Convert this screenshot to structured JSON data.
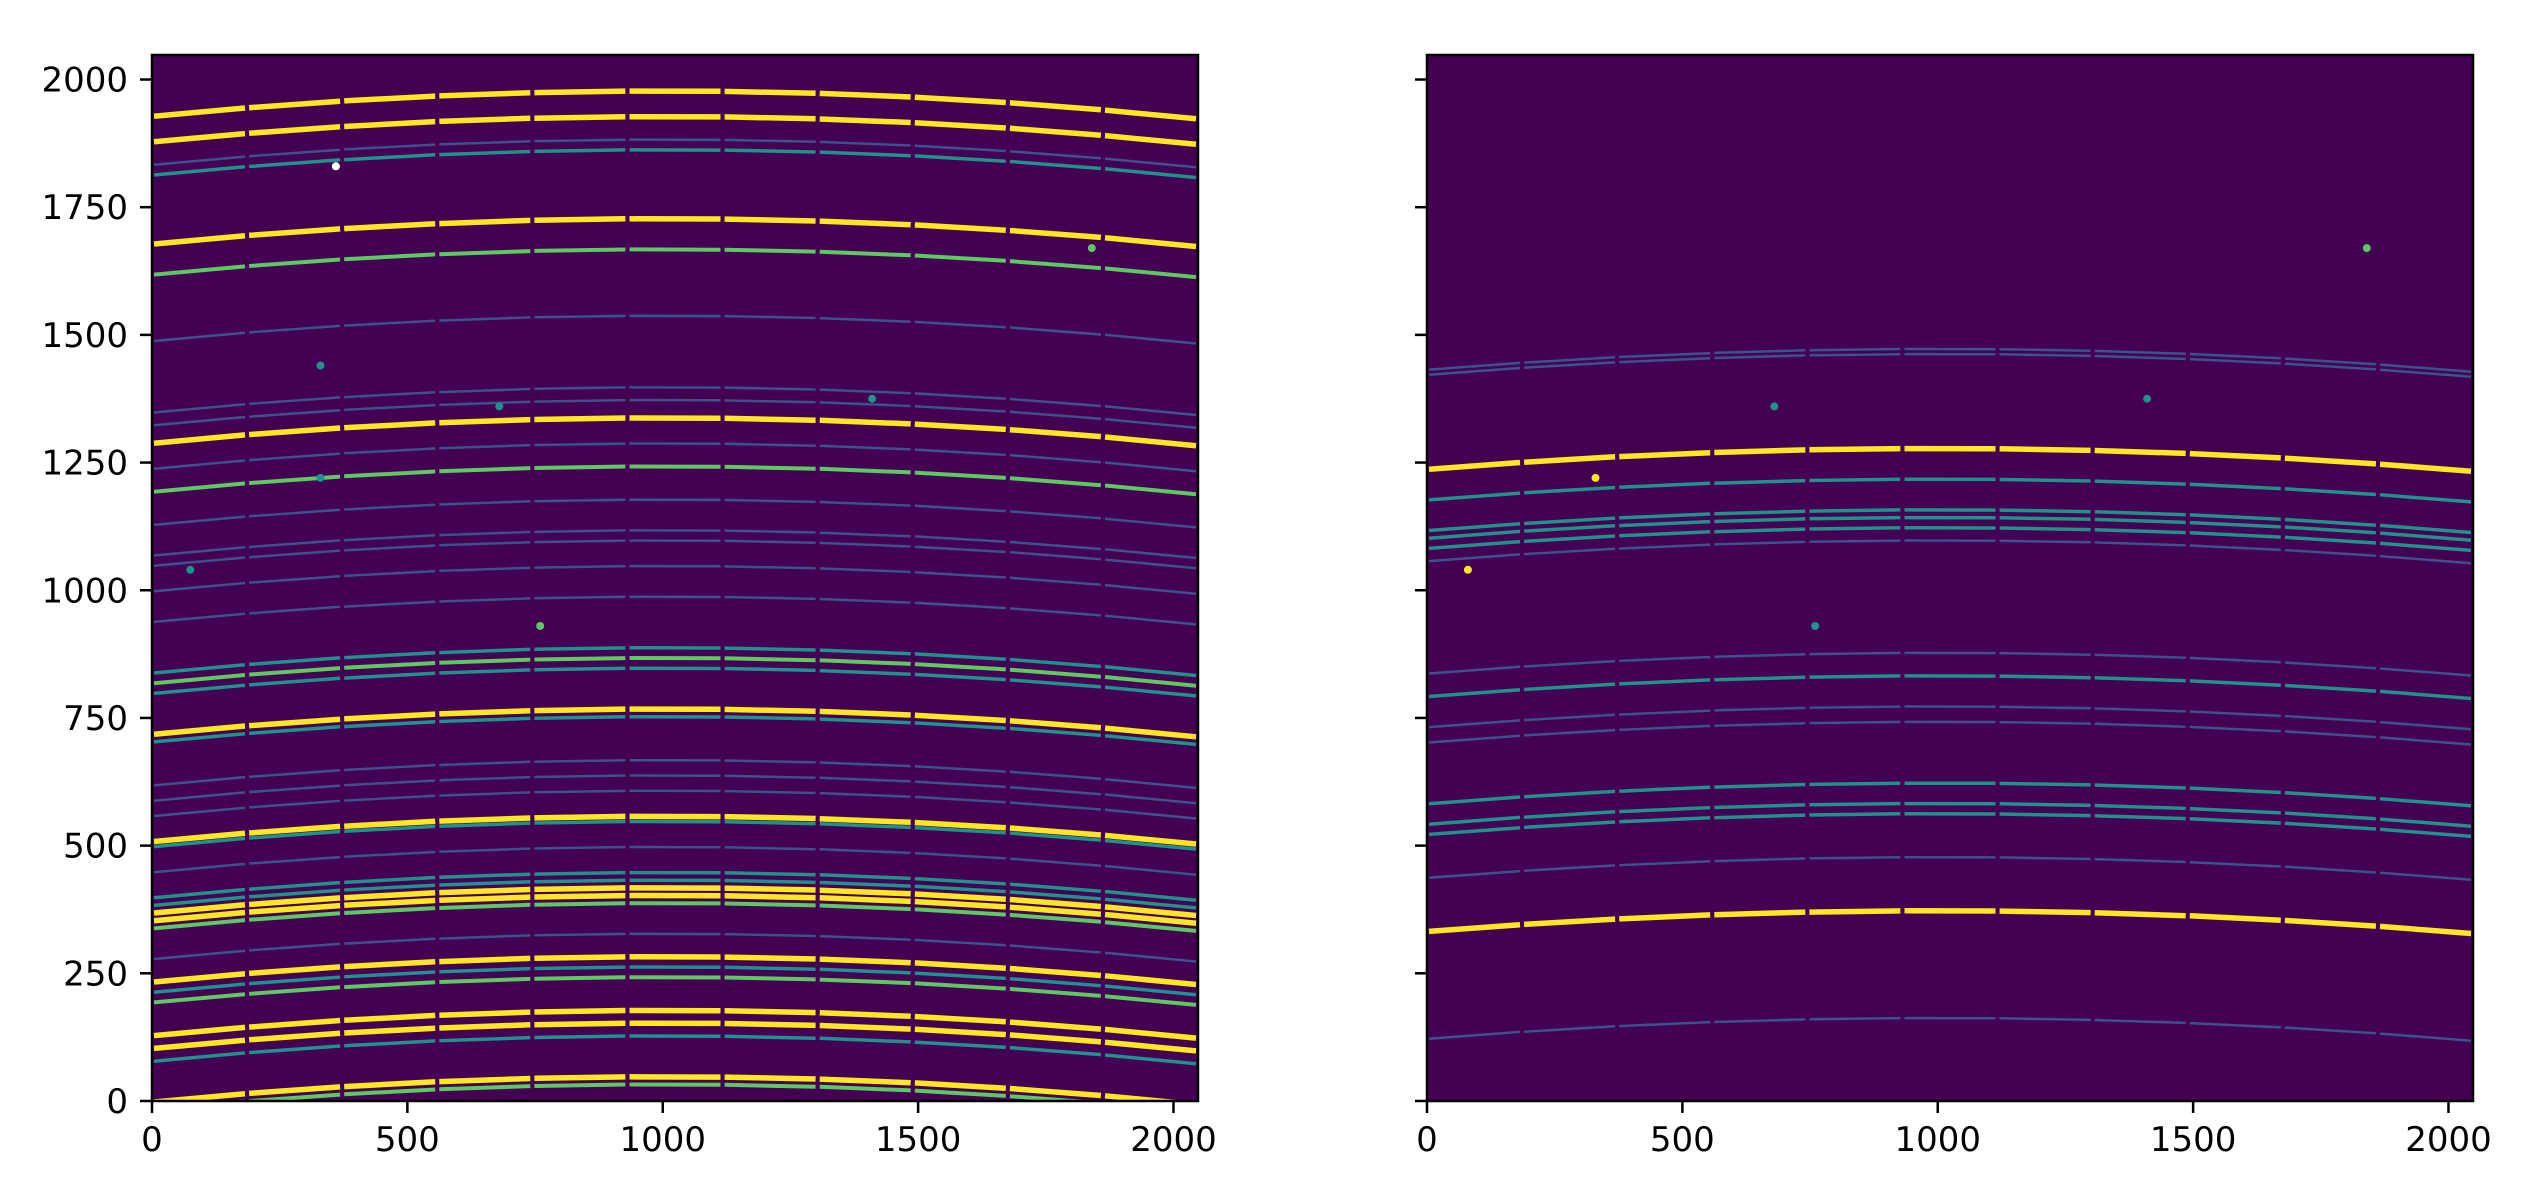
{
  "figure": {
    "background": "#ffffff"
  },
  "colors": {
    "background_level": "#440154",
    "low_level": "#3b528b",
    "mid_level": "#21918c",
    "high_level": "#5ec962",
    "peak_level": "#fde725"
  },
  "chart_data": [
    {
      "type": "heatmap",
      "colormap": "viridis",
      "xlim": [
        0,
        2048
      ],
      "ylim": [
        0,
        2048
      ],
      "xticks": [
        "0",
        "500",
        "1000",
        "1500",
        "2000"
      ],
      "yticks": [
        "0",
        "250",
        "500",
        "750",
        "1000",
        "1250",
        "1500",
        "1750",
        "2000"
      ],
      "x_tick_values": [
        0,
        500,
        1000,
        1500,
        2000
      ],
      "y_tick_values": [
        0,
        250,
        500,
        750,
        1000,
        1250,
        1500,
        1750,
        2000
      ],
      "show_ytick_labels": true,
      "curvature": 55,
      "segment_count": 11,
      "lines": [
        {
          "y": 1950,
          "level": "peak"
        },
        {
          "y": 1900,
          "level": "peak"
        },
        {
          "y": 1855,
          "level": "low"
        },
        {
          "y": 1835,
          "level": "mid"
        },
        {
          "y": 1700,
          "level": "peak"
        },
        {
          "y": 1640,
          "level": "high"
        },
        {
          "y": 1510,
          "level": "low"
        },
        {
          "y": 1370,
          "level": "low"
        },
        {
          "y": 1345,
          "level": "low"
        },
        {
          "y": 1310,
          "level": "peak"
        },
        {
          "y": 1260,
          "level": "low"
        },
        {
          "y": 1215,
          "level": "high"
        },
        {
          "y": 1150,
          "level": "low"
        },
        {
          "y": 1090,
          "level": "low"
        },
        {
          "y": 1070,
          "level": "low"
        },
        {
          "y": 1020,
          "level": "low"
        },
        {
          "y": 960,
          "level": "low"
        },
        {
          "y": 860,
          "level": "mid"
        },
        {
          "y": 840,
          "level": "high"
        },
        {
          "y": 820,
          "level": "mid"
        },
        {
          "y": 740,
          "level": "peak"
        },
        {
          "y": 725,
          "level": "mid"
        },
        {
          "y": 640,
          "level": "low"
        },
        {
          "y": 610,
          "level": "low"
        },
        {
          "y": 580,
          "level": "low"
        },
        {
          "y": 530,
          "level": "peak"
        },
        {
          "y": 520,
          "level": "mid"
        },
        {
          "y": 470,
          "level": "low"
        },
        {
          "y": 420,
          "level": "mid"
        },
        {
          "y": 405,
          "level": "mid"
        },
        {
          "y": 390,
          "level": "peak"
        },
        {
          "y": 375,
          "level": "peak"
        },
        {
          "y": 360,
          "level": "high"
        },
        {
          "y": 300,
          "level": "low"
        },
        {
          "y": 255,
          "level": "peak"
        },
        {
          "y": 235,
          "level": "mid"
        },
        {
          "y": 215,
          "level": "high"
        },
        {
          "y": 150,
          "level": "peak"
        },
        {
          "y": 125,
          "level": "peak"
        },
        {
          "y": 100,
          "level": "mid"
        },
        {
          "y": 20,
          "level": "peak"
        },
        {
          "y": 5,
          "level": "high"
        }
      ],
      "spots": [
        {
          "x": 360,
          "y": 1830,
          "level": "white"
        },
        {
          "x": 330,
          "y": 1440,
          "level": "mid"
        },
        {
          "x": 680,
          "y": 1360,
          "level": "mid"
        },
        {
          "x": 1410,
          "y": 1375,
          "level": "mid"
        },
        {
          "x": 330,
          "y": 1220,
          "level": "mid"
        },
        {
          "x": 75,
          "y": 1040,
          "level": "mid"
        },
        {
          "x": 760,
          "y": 930,
          "level": "high"
        },
        {
          "x": 1840,
          "y": 1670,
          "level": "high"
        }
      ]
    },
    {
      "type": "heatmap",
      "colormap": "viridis",
      "xlim": [
        0,
        2048
      ],
      "ylim": [
        0,
        2048
      ],
      "xticks": [
        "0",
        "500",
        "1000",
        "1500",
        "2000"
      ],
      "yticks": [],
      "x_tick_values": [
        0,
        500,
        1000,
        1500,
        2000
      ],
      "y_tick_values": [
        0,
        250,
        500,
        750,
        1000,
        1250,
        1500,
        1750,
        2000
      ],
      "show_ytick_labels": false,
      "curvature": 45,
      "segment_count": 11,
      "lines": [
        {
          "y": 1450,
          "level": "low"
        },
        {
          "y": 1440,
          "level": "low"
        },
        {
          "y": 1255,
          "level": "peak"
        },
        {
          "y": 1195,
          "level": "mid"
        },
        {
          "y": 1135,
          "level": "mid"
        },
        {
          "y": 1120,
          "level": "mid"
        },
        {
          "y": 1100,
          "level": "mid"
        },
        {
          "y": 1075,
          "level": "low"
        },
        {
          "y": 855,
          "level": "low"
        },
        {
          "y": 810,
          "level": "mid"
        },
        {
          "y": 750,
          "level": "low"
        },
        {
          "y": 720,
          "level": "low"
        },
        {
          "y": 600,
          "level": "mid"
        },
        {
          "y": 560,
          "level": "mid"
        },
        {
          "y": 540,
          "level": "mid"
        },
        {
          "y": 455,
          "level": "low"
        },
        {
          "y": 350,
          "level": "peak"
        },
        {
          "y": 140,
          "level": "low"
        }
      ],
      "spots": [
        {
          "x": 80,
          "y": 1040,
          "level": "peak"
        },
        {
          "x": 680,
          "y": 1360,
          "level": "mid"
        },
        {
          "x": 1410,
          "y": 1375,
          "level": "mid"
        },
        {
          "x": 760,
          "y": 930,
          "level": "mid"
        },
        {
          "x": 330,
          "y": 1220,
          "level": "peak"
        },
        {
          "x": 1840,
          "y": 1670,
          "level": "high"
        }
      ]
    }
  ]
}
